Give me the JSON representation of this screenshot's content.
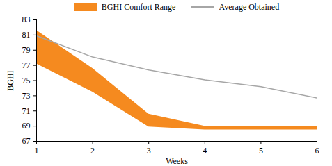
{
  "chart_data": {
    "type": "line",
    "x_label": "Weeks",
    "y_label": "BGHI",
    "x": [
      1,
      2,
      3,
      4,
      5,
      6
    ],
    "series": [
      {
        "name": "BGHI Comfort Range",
        "type": "area",
        "color": "#f58a1f",
        "lower": [
          77.2,
          73.5,
          68.9,
          68.5,
          68.5,
          68.5
        ],
        "upper": [
          81.6,
          76.6,
          70.6,
          69.0,
          69.0,
          69.0
        ]
      },
      {
        "name": "Average Obtained",
        "type": "line",
        "color": "#a6a6a6",
        "values": [
          80.9,
          78.1,
          76.4,
          75.1,
          74.2,
          72.7
        ]
      }
    ],
    "xlim": [
      1,
      6
    ],
    "xticks": [
      1,
      2,
      3,
      4,
      5,
      6
    ],
    "ylim": [
      67,
      83
    ],
    "yticks": [
      67,
      69,
      71,
      73,
      75,
      77,
      79,
      81,
      83
    ],
    "grid": false,
    "legend": "top"
  }
}
